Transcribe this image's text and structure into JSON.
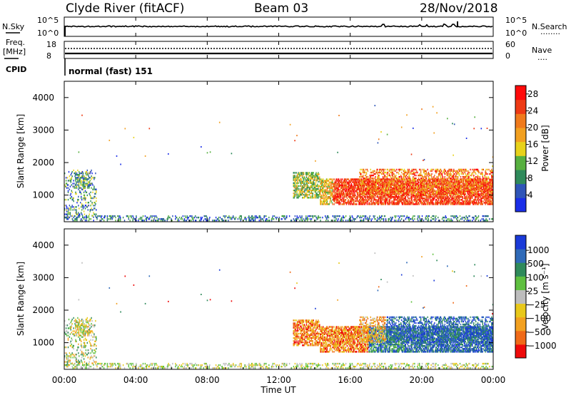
{
  "header": {
    "station": "Clyde River (fitACF)",
    "beam": "Beam 03",
    "date": "28/Nov/2018"
  },
  "nsky_panel": {
    "left_label": "N.Sky",
    "left_ticks": [
      "10^5",
      "10^0"
    ],
    "right_ticks": [
      "10^5",
      "10^0"
    ],
    "right_label": "N.Search",
    "right_dotted": "........"
  },
  "freq_panel": {
    "left_label_1": "Freq.",
    "left_label_2": "[MHz]",
    "left_ticks": [
      "18",
      "8"
    ],
    "right_ticks": [
      "60",
      "0"
    ],
    "right_label": "Nave",
    "right_dotted": "....",
    "cpid_label": "CPID",
    "cpid_value": "normal (fast) 151"
  },
  "colors": {
    "power_scale": [
      "#1a2ee8",
      "#2f55b8",
      "#2f8a5b",
      "#57b040",
      "#e8d21a",
      "#f2a020",
      "#f07a1c",
      "#ee3a14",
      "#ff0a0a"
    ],
    "velocity_scale": [
      "#1a3ad8",
      "#2f6ab8",
      "#2f8a5b",
      "#5fc040",
      "#bdbdbd",
      "#e8c81a",
      "#f2a020",
      "#f06a18",
      "#ee0a0a"
    ]
  },
  "chart_data": [
    {
      "type": "heatmap",
      "name": "power",
      "ylabel": "Slant Range [km]",
      "xlabel": "Time UT",
      "x_ticks": [
        "00:00",
        "04:00",
        "08:00",
        "12:00",
        "16:00",
        "20:00",
        "00:00"
      ],
      "y_ticks": [
        1000,
        2000,
        3000,
        4000
      ],
      "ylim": [
        180,
        4500
      ],
      "colorbar_label": "Power [dB]",
      "colorbar_ticks": [
        4,
        8,
        12,
        16,
        20,
        24,
        28
      ],
      "colorbar_range": [
        0,
        30
      ]
    },
    {
      "type": "heatmap",
      "name": "velocity",
      "ylabel": "Slant Range [km]",
      "xlabel": "Time UT",
      "x_ticks": [
        "00:00",
        "04:00",
        "08:00",
        "12:00",
        "16:00",
        "20:00",
        "00:00"
      ],
      "y_ticks": [
        1000,
        2000,
        3000,
        4000
      ],
      "ylim": [
        180,
        4500
      ],
      "colorbar_label": "Velocity [m s⁻¹]",
      "colorbar_ticks": [
        "1000",
        "500",
        "100",
        "25",
        "−25",
        "−100",
        "−500",
        "−1000"
      ]
    }
  ]
}
